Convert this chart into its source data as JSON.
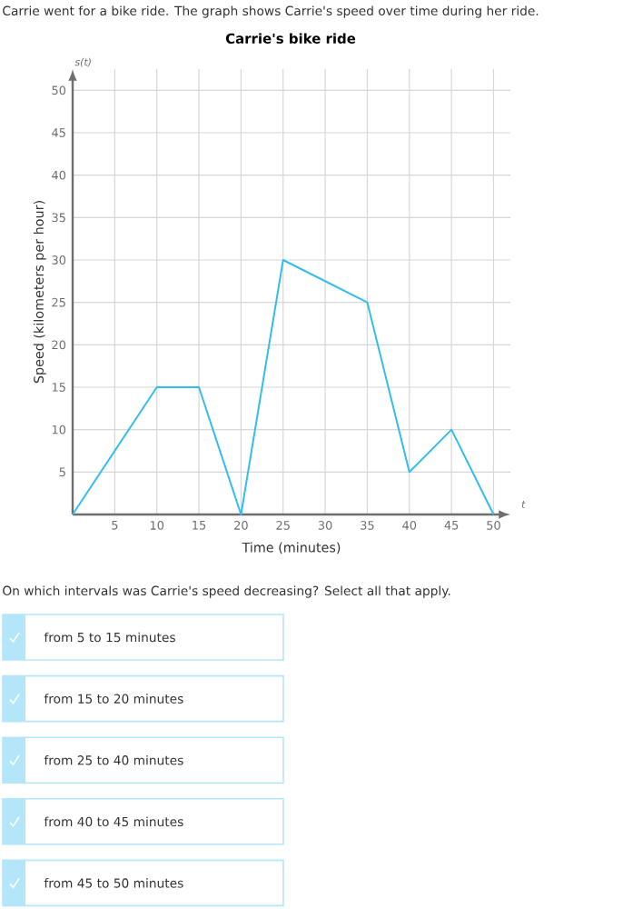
{
  "chart_data": {
    "type": "line",
    "title": "Carrie's bike ride",
    "subtitle": "Carrie went for a bike ride. The graph shows Carrie's speed over time during her ride.",
    "xlabel": "Time (minutes)",
    "ylabel": "Speed (kilometers per hour)",
    "x": [
      0,
      10,
      15,
      20,
      25,
      35,
      40,
      45,
      50
    ],
    "series": [
      {
        "color": "#33bdef",
        "values": [
          0,
          15,
          15,
          0,
          30,
          25,
          5,
          10,
          0
        ]
      }
    ],
    "xlim": [
      0,
      52
    ],
    "ylim": [
      0,
      52.5
    ],
    "xticks": [
      5,
      10,
      15,
      20,
      25,
      30,
      35,
      40,
      45,
      50
    ],
    "yticks": [
      5,
      10,
      15,
      20,
      25,
      30,
      35,
      40,
      45,
      50
    ],
    "grid": true,
    "annotations": [
      "s(t)",
      "t",
      "On which intervals was Carrie's speed decreasing? Select all that apply.",
      "from 5 to 15 minutes",
      "from 15 to 20 minutes",
      "from 25 to 40 minutes",
      "from 40 to 45 minutes",
      "from 45 to 50 minutes"
    ]
  }
}
